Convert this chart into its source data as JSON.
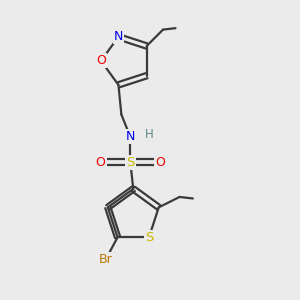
{
  "bg_color": "#ebebeb",
  "bond_color": "#3a3a3a",
  "atom_colors": {
    "N": "#0000ee",
    "O": "#ee0000",
    "S_sulfo": "#ccbb00",
    "S_thio": "#ccbb00",
    "Br": "#bb7700",
    "H": "#5a8a8a",
    "C": "#3a3a3a"
  },
  "lw": 1.6
}
